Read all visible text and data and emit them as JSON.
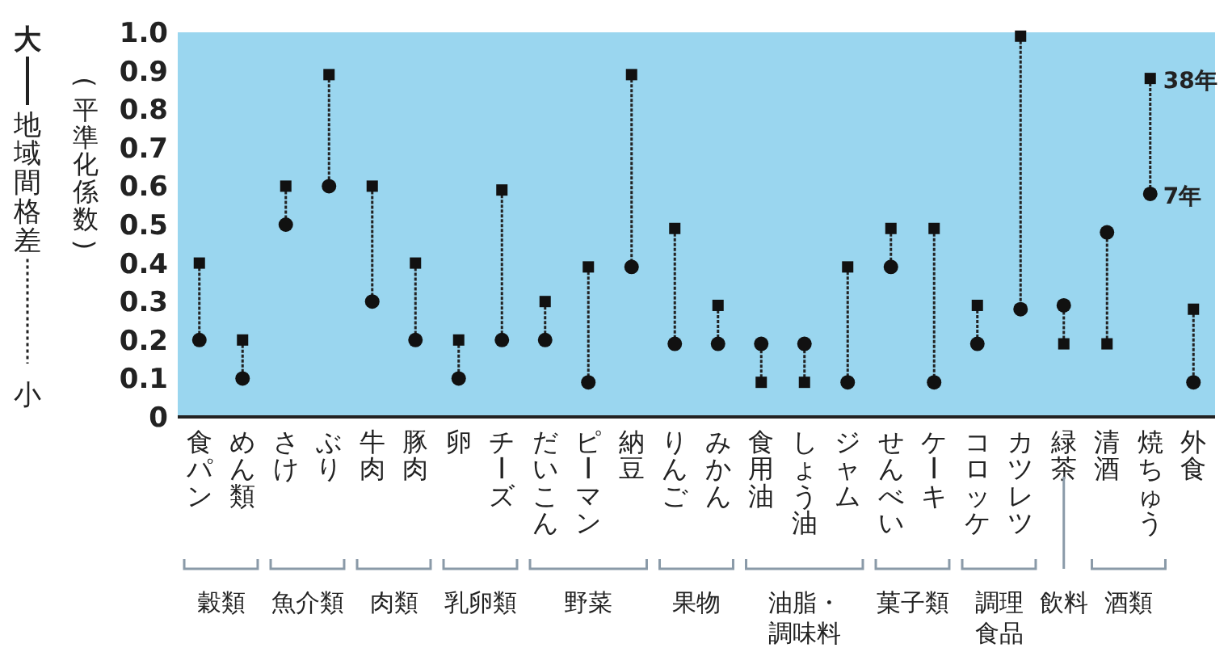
{
  "chart_data": {
    "type": "scatter",
    "ylabel": "(平準化係数)",
    "annotations": [
      "大",
      "地域間格差",
      "小",
      "穀類",
      "魚介類",
      "肉類",
      "乳卵類",
      "野菜",
      "果物",
      "油脂・調味料",
      "菓子類",
      "調理食品",
      "飲料",
      "酒類"
    ],
    "categories": [
      "食パン",
      "めん類",
      "さけ",
      "ぶり",
      "牛肉",
      "豚肉",
      "卵",
      "チーズ",
      "だいこん",
      "ピーマン",
      "納豆",
      "りんご",
      "みかん",
      "食用油",
      "しょう油",
      "ジャム",
      "せんべい",
      "ケーキ",
      "コロッケ",
      "カツレツ",
      "緑茶",
      "清酒",
      "焼ちゅう",
      "外食"
    ],
    "series": [
      {
        "name": "38年",
        "color": "#111111",
        "marker": "square",
        "values": [
          0.4,
          0.2,
          0.6,
          0.89,
          0.6,
          0.4,
          0.2,
          0.59,
          0.3,
          0.39,
          0.89,
          0.49,
          0.29,
          0.09,
          0.09,
          0.39,
          0.49,
          0.49,
          0.29,
          0.99,
          0.19,
          0.19,
          0.88,
          0.28
        ]
      },
      {
        "name": "7年",
        "color": "#111111",
        "marker": "circle",
        "values": [
          0.2,
          0.1,
          0.5,
          0.6,
          0.3,
          0.2,
          0.1,
          0.2,
          0.2,
          0.09,
          0.39,
          0.19,
          0.19,
          0.19,
          0.19,
          0.09,
          0.39,
          0.09,
          0.19,
          0.28,
          0.29,
          0.48,
          0.58,
          0.09
        ]
      }
    ],
    "ylim": [
      0,
      1
    ],
    "yticks": [
      0,
      0.1,
      0.2,
      0.3,
      0.4,
      0.5,
      0.6,
      0.7,
      0.8,
      0.9,
      {
        "value": 1,
        "label": "1.0"
      }
    ]
  }
}
